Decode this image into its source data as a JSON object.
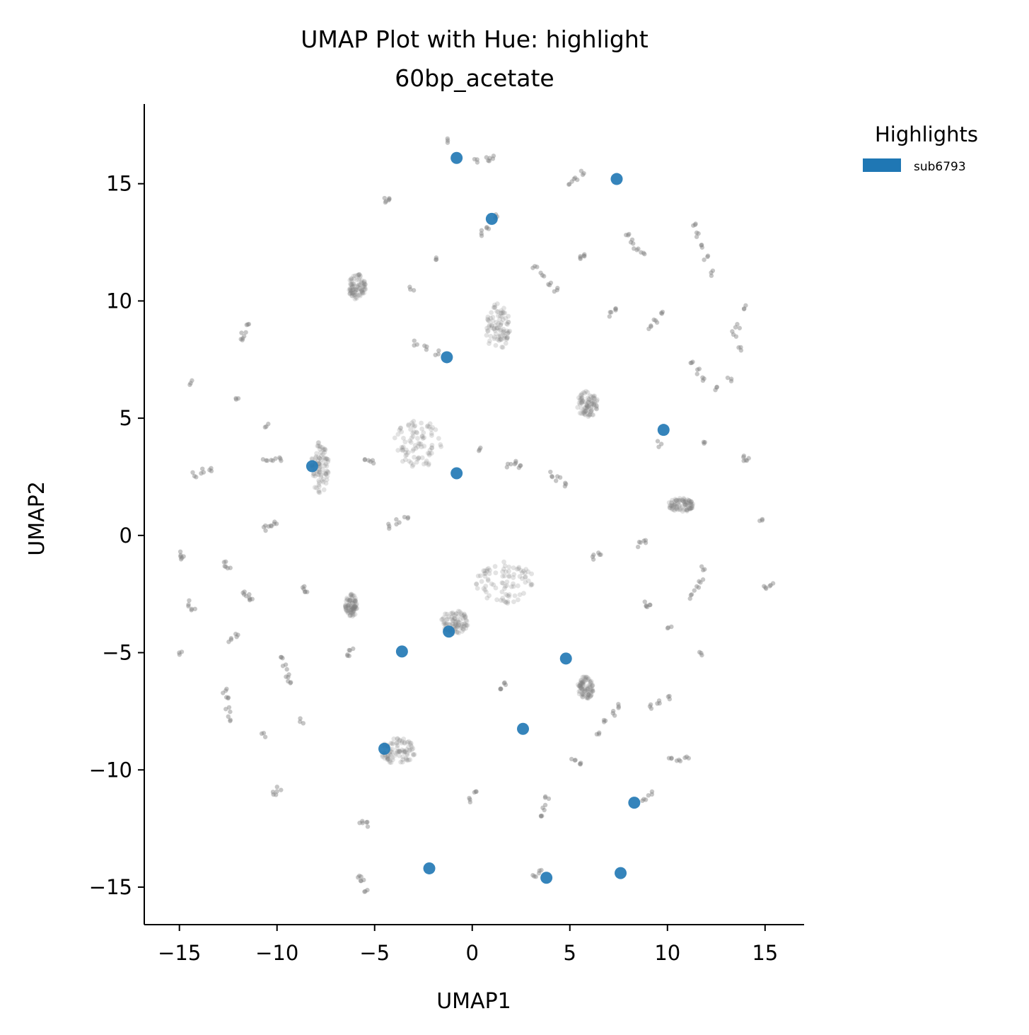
{
  "chart_data": {
    "type": "scatter",
    "title": "UMAP Plot with Hue: highlight",
    "subtitle": "60bp_acetate",
    "xlabel": "UMAP1",
    "ylabel": "UMAP2",
    "xlim": [
      -16.8,
      17
    ],
    "ylim": [
      -16.6,
      18.4
    ],
    "xticks": [
      -15,
      -10,
      -5,
      0,
      5,
      10,
      15
    ],
    "yticks": [
      -15,
      -10,
      -5,
      0,
      5,
      10,
      15
    ],
    "xtick_labels": [
      "−15",
      "−10",
      "−5",
      "0",
      "5",
      "10",
      "15"
    ],
    "ytick_labels": [
      "−15",
      "−10",
      "−5",
      "0",
      "5",
      "10",
      "15"
    ],
    "grid": false,
    "legend": {
      "title": "Highlights",
      "placement": "outside-top-right",
      "entries": [
        "sub6793"
      ]
    },
    "colors": {
      "highlight": "#1f77b4",
      "background": "#808080"
    },
    "series": [
      {
        "name": "sub6793",
        "points": [
          [
            -0.8,
            16.1
          ],
          [
            7.4,
            15.2
          ],
          [
            1.0,
            13.5
          ],
          [
            -1.3,
            7.6
          ],
          [
            9.8,
            4.5
          ],
          [
            -8.2,
            2.95
          ],
          [
            -0.8,
            2.65
          ],
          [
            -1.2,
            -4.1
          ],
          [
            -3.6,
            -4.95
          ],
          [
            4.8,
            -5.25
          ],
          [
            2.6,
            -8.25
          ],
          [
            -4.5,
            -9.1
          ],
          [
            8.3,
            -11.4
          ],
          [
            -2.2,
            -14.2
          ],
          [
            3.8,
            -14.6
          ],
          [
            7.6,
            -14.4
          ]
        ]
      }
    ],
    "background_clusters": [
      {
        "points": [
          [
            -1.3,
            16.8
          ],
          [
            0.2,
            15.95
          ],
          [
            0.8,
            16.05
          ],
          [
            1.0,
            16.1
          ]
        ]
      },
      {
        "points": [
          [
            5.0,
            15.0
          ],
          [
            5.3,
            15.25
          ],
          [
            5.6,
            15.45
          ]
        ]
      },
      {
        "points": [
          [
            -4.5,
            14.3
          ],
          [
            -4.3,
            14.4
          ]
        ]
      },
      {
        "points": [
          [
            0.5,
            12.9
          ],
          [
            0.8,
            13.2
          ],
          [
            1.2,
            13.6
          ]
        ]
      },
      {
        "points": [
          [
            8.0,
            12.8
          ],
          [
            8.2,
            12.5
          ],
          [
            8.4,
            12.2
          ],
          [
            8.7,
            12.0
          ]
        ]
      },
      {
        "points": [
          [
            11.4,
            13.2
          ],
          [
            11.6,
            12.8
          ],
          [
            11.8,
            12.3
          ],
          [
            12.0,
            11.8
          ],
          [
            12.3,
            11.2
          ]
        ]
      },
      {
        "points": [
          [
            5.5,
            11.8
          ],
          [
            5.7,
            12.0
          ]
        ]
      },
      {
        "points": [
          [
            -1.8,
            11.8
          ]
        ]
      },
      {
        "points": [
          [
            3.2,
            11.4
          ],
          [
            3.6,
            11.1
          ],
          [
            4.0,
            10.8
          ],
          [
            4.3,
            10.5
          ]
        ]
      },
      {
        "points": [
          [
            -3.1,
            10.5
          ]
        ]
      },
      {
        "points": [
          [
            7.1,
            9.4
          ],
          [
            7.4,
            9.6
          ]
        ]
      },
      {
        "points": [
          [
            9.1,
            8.9
          ],
          [
            9.4,
            9.2
          ],
          [
            9.7,
            9.5
          ]
        ]
      },
      {
        "points": [
          [
            13.9,
            9.7
          ],
          [
            13.6,
            8.9
          ],
          [
            13.4,
            8.6
          ],
          [
            13.7,
            7.9
          ]
        ]
      },
      {
        "points": [
          [
            -11.8,
            8.3
          ],
          [
            -11.7,
            8.6
          ],
          [
            -11.5,
            8.9
          ]
        ]
      },
      {
        "points": [
          [
            -2.9,
            8.2
          ],
          [
            -2.4,
            8.0
          ],
          [
            -1.8,
            7.8
          ]
        ]
      },
      {
        "points": [
          [
            11.3,
            7.4
          ],
          [
            11.6,
            7.0
          ],
          [
            11.8,
            6.7
          ]
        ]
      },
      {
        "points": [
          [
            12.5,
            6.3
          ],
          [
            13.2,
            6.6
          ]
        ]
      },
      {
        "points": [
          [
            -14.4,
            6.5
          ]
        ]
      },
      {
        "points": [
          [
            -12.1,
            5.8
          ]
        ]
      },
      {
        "points": [
          [
            -10.5,
            4.7
          ]
        ]
      },
      {
        "points": [
          [
            9.6,
            3.9
          ]
        ]
      },
      {
        "points": [
          [
            11.8,
            3.9
          ]
        ]
      },
      {
        "points": [
          [
            0.3,
            3.7
          ]
        ]
      },
      {
        "points": [
          [
            -10.6,
            3.2
          ],
          [
            -10.2,
            3.3
          ],
          [
            -9.9,
            3.2
          ]
        ]
      },
      {
        "points": [
          [
            -14.2,
            2.6
          ],
          [
            -13.8,
            2.75
          ],
          [
            -13.4,
            2.85
          ]
        ]
      },
      {
        "points": [
          [
            -5.4,
            3.3
          ],
          [
            -5.1,
            3.1
          ]
        ]
      },
      {
        "points": [
          [
            1.9,
            3.0
          ],
          [
            2.3,
            3.1
          ],
          [
            2.5,
            3.0
          ]
        ]
      },
      {
        "points": [
          [
            4.0,
            2.6
          ],
          [
            4.4,
            2.4
          ],
          [
            4.8,
            2.2
          ]
        ]
      },
      {
        "points": [
          [
            13.9,
            3.3
          ],
          [
            14.1,
            3.2
          ]
        ]
      },
      {
        "points": [
          [
            -10.1,
            0.5
          ],
          [
            -10.4,
            0.4
          ],
          [
            -10.7,
            0.3
          ]
        ]
      },
      {
        "points": [
          [
            -4.2,
            0.4
          ],
          [
            -3.8,
            0.6
          ],
          [
            -3.4,
            0.8
          ]
        ]
      },
      {
        "points": [
          [
            14.8,
            0.65
          ]
        ]
      },
      {
        "points": [
          [
            -15.0,
            -0.8
          ],
          [
            -14.9,
            -0.9
          ]
        ]
      },
      {
        "points": [
          [
            -12.7,
            -1.2
          ],
          [
            -12.5,
            -1.3
          ]
        ]
      },
      {
        "points": [
          [
            6.2,
            -0.9
          ],
          [
            6.5,
            -0.7
          ]
        ]
      },
      {
        "points": [
          [
            8.6,
            -0.4
          ],
          [
            8.9,
            -0.3
          ]
        ]
      },
      {
        "points": [
          [
            11.8,
            -1.4
          ]
        ]
      },
      {
        "points": [
          [
            -11.7,
            -2.4
          ],
          [
            -11.5,
            -2.6
          ],
          [
            -11.3,
            -2.8
          ]
        ]
      },
      {
        "points": [
          [
            -8.7,
            -2.2
          ],
          [
            -8.5,
            -2.5
          ]
        ]
      },
      {
        "points": [
          [
            -14.6,
            -2.9
          ],
          [
            -14.3,
            -3.1
          ]
        ]
      },
      {
        "points": [
          [
            15.0,
            -2.2
          ],
          [
            15.3,
            -2.1
          ]
        ]
      },
      {
        "points": [
          [
            11.2,
            -2.6
          ],
          [
            11.5,
            -2.3
          ],
          [
            11.7,
            -2.0
          ]
        ]
      },
      {
        "points": [
          [
            8.8,
            -2.9
          ],
          [
            9.0,
            -3.0
          ]
        ]
      },
      {
        "points": [
          [
            -12.4,
            -4.5
          ],
          [
            -12.1,
            -4.3
          ]
        ]
      },
      {
        "points": [
          [
            -15.0,
            -5.0
          ]
        ]
      },
      {
        "points": [
          [
            10.1,
            -4.0
          ]
        ]
      },
      {
        "points": [
          [
            11.7,
            -5.0
          ]
        ]
      },
      {
        "points": [
          [
            -9.7,
            -5.2
          ],
          [
            -9.6,
            -5.6
          ],
          [
            -9.5,
            -6.0
          ],
          [
            -9.4,
            -6.2
          ]
        ]
      },
      {
        "points": [
          [
            -6.4,
            -5.2
          ],
          [
            -6.2,
            -4.8
          ]
        ]
      },
      {
        "points": [
          [
            1.4,
            -6.5
          ],
          [
            1.6,
            -6.3
          ]
        ]
      },
      {
        "points": [
          [
            -12.7,
            -6.6
          ],
          [
            -12.6,
            -7.0
          ],
          [
            -12.5,
            -7.4
          ],
          [
            -12.4,
            -7.8
          ]
        ]
      },
      {
        "points": [
          [
            9.2,
            -7.3
          ],
          [
            9.6,
            -7.1
          ],
          [
            10.1,
            -6.9
          ]
        ]
      },
      {
        "points": [
          [
            6.8,
            -7.9
          ],
          [
            7.2,
            -7.6
          ],
          [
            7.6,
            -7.3
          ]
        ]
      },
      {
        "points": [
          [
            -8.7,
            -7.9
          ]
        ]
      },
      {
        "points": [
          [
            -10.7,
            -8.5
          ]
        ]
      },
      {
        "points": [
          [
            6.5,
            -8.5
          ]
        ]
      },
      {
        "points": [
          [
            5.2,
            -9.5
          ],
          [
            5.5,
            -9.8
          ]
        ]
      },
      {
        "points": [
          [
            10.2,
            -9.4
          ],
          [
            10.6,
            -9.5
          ],
          [
            11.0,
            -9.5
          ]
        ]
      },
      {
        "points": [
          [
            -10.1,
            -11.0
          ],
          [
            -9.9,
            -10.8
          ]
        ]
      },
      {
        "points": [
          [
            -0.1,
            -11.3
          ],
          [
            0.1,
            -10.9
          ]
        ]
      },
      {
        "points": [
          [
            3.7,
            -11.6
          ],
          [
            3.8,
            -11.2
          ],
          [
            3.6,
            -12.0
          ]
        ]
      },
      {
        "points": [
          [
            8.8,
            -11.2
          ],
          [
            9.1,
            -11.0
          ]
        ]
      },
      {
        "points": [
          [
            -5.7,
            -12.3
          ],
          [
            -5.4,
            -12.3
          ]
        ]
      },
      {
        "points": [
          [
            -5.8,
            -14.5
          ],
          [
            -5.6,
            -14.8
          ],
          [
            -5.4,
            -15.1
          ]
        ]
      },
      {
        "points": [
          [
            3.2,
            -14.5
          ],
          [
            3.5,
            -14.3
          ]
        ]
      }
    ],
    "background_blobs": [
      {
        "center": [
          -5.9,
          10.6
        ],
        "spread": [
          0.45,
          0.55
        ]
      },
      {
        "center": [
          1.3,
          8.9
        ],
        "spread": [
          0.65,
          1.0
        ]
      },
      {
        "center": [
          5.9,
          5.6
        ],
        "spread": [
          0.55,
          0.55
        ]
      },
      {
        "center": [
          -2.8,
          3.9
        ],
        "spread": [
          1.3,
          1.0
        ]
      },
      {
        "center": [
          -7.8,
          2.9
        ],
        "spread": [
          0.45,
          1.1
        ]
      },
      {
        "center": [
          10.7,
          1.3
        ],
        "spread": [
          0.65,
          0.3
        ]
      },
      {
        "center": [
          1.7,
          -2.0
        ],
        "spread": [
          1.5,
          0.9
        ]
      },
      {
        "center": [
          -0.9,
          -3.7
        ],
        "spread": [
          0.7,
          0.5
        ]
      },
      {
        "center": [
          -6.2,
          -3.0
        ],
        "spread": [
          0.3,
          0.5
        ]
      },
      {
        "center": [
          5.8,
          -6.5
        ],
        "spread": [
          0.4,
          0.5
        ]
      },
      {
        "center": [
          -3.8,
          -9.2
        ],
        "spread": [
          0.9,
          0.55
        ]
      }
    ]
  }
}
